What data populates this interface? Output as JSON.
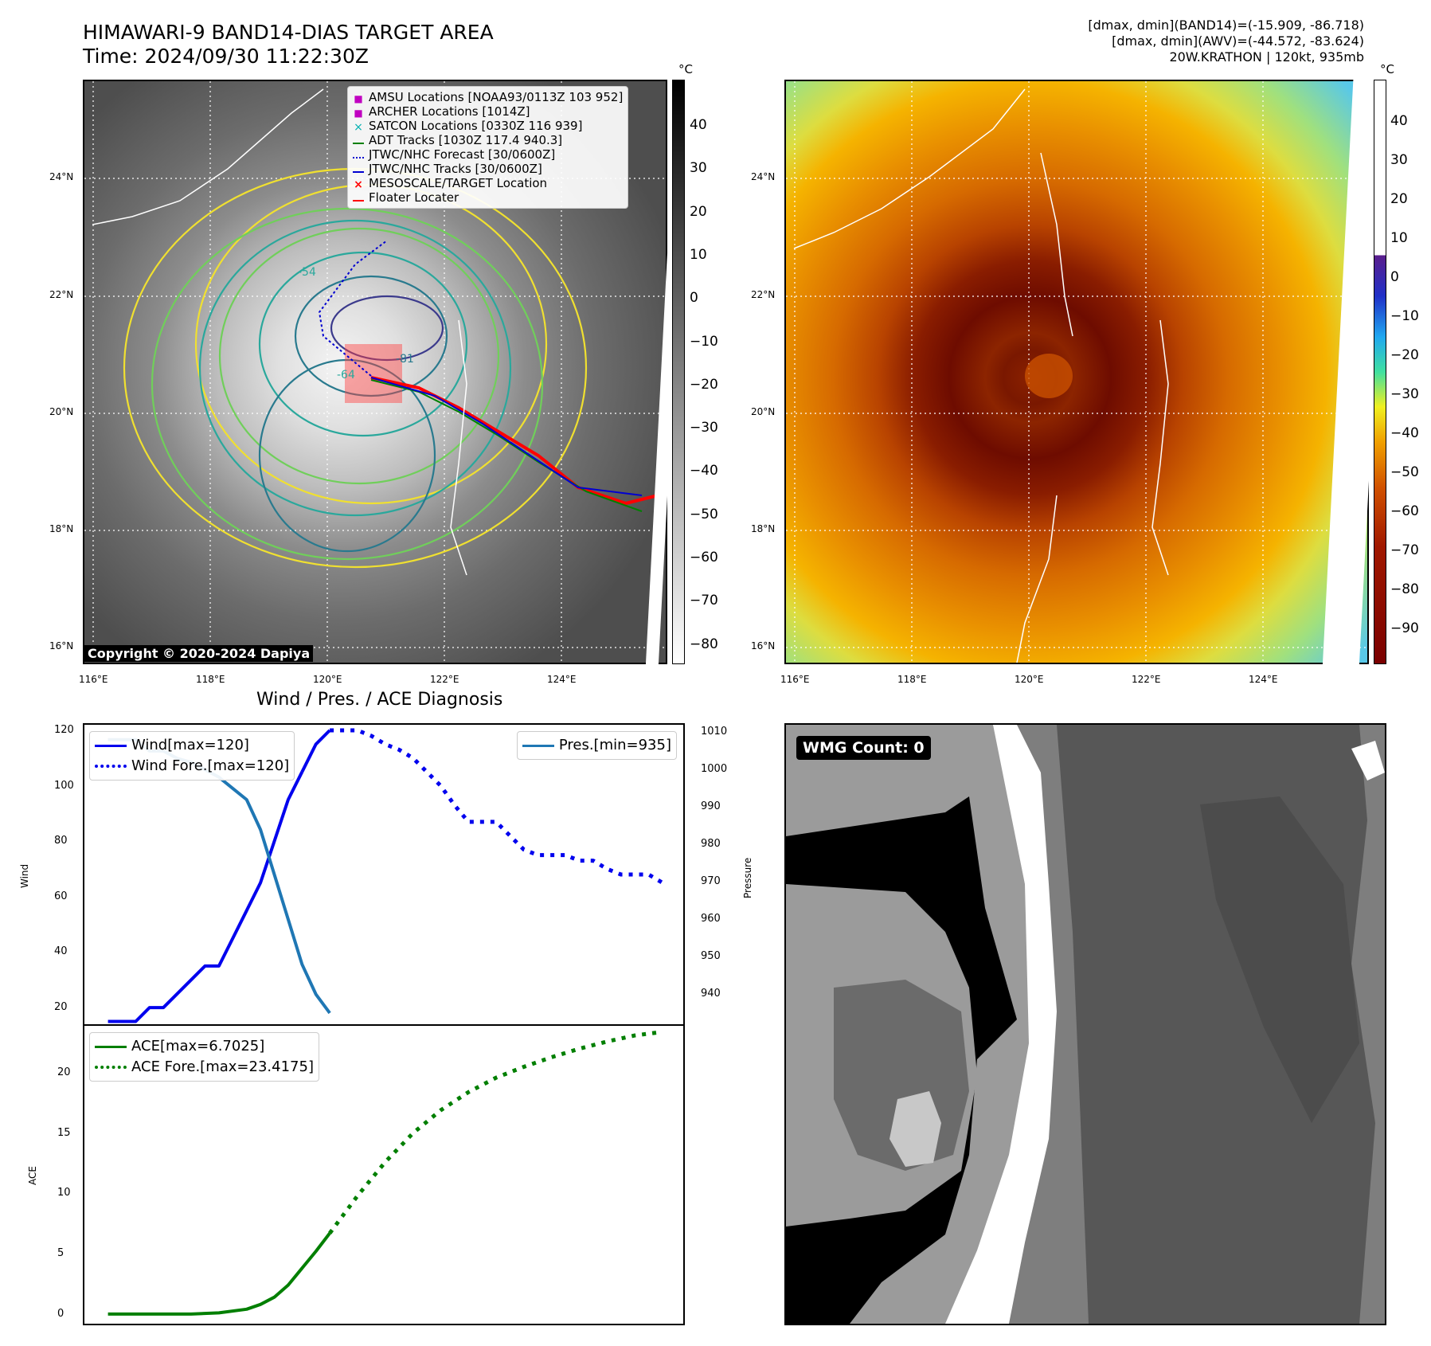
{
  "title_line1": "HIMAWARI-9 BAND14-DIAS TARGET AREA",
  "title_line2": "Time: 2024/09/30 11:22:30Z",
  "info_line1": "[dmax, dmin](BAND14)=(-15.909, -86.718)",
  "info_line2": "[dmax, dmin](AWV)=(-44.572, -83.624)",
  "info_line3": "20W.KRATHON | 120kt, 935mb",
  "copyright": "Copyright © 2020-2024 Dapiya",
  "unit_label": "°C",
  "map_lat_ticks": [
    "24°N",
    "22°N",
    "20°N",
    "18°N",
    "16°N"
  ],
  "map_lon_ticks": [
    "116°E",
    "118°E",
    "120°E",
    "122°E",
    "124°E"
  ],
  "cbar_left_ticks": [
    "40",
    "30",
    "20",
    "10",
    "0",
    "−10",
    "−20",
    "−30",
    "−40",
    "−50",
    "−60",
    "−70",
    "−80"
  ],
  "cbar_right_ticks": [
    "40",
    "30",
    "20",
    "10",
    "0",
    "−10",
    "−20",
    "−30",
    "−40",
    "−50",
    "−60",
    "−70",
    "−80",
    "−90"
  ],
  "map_legend": [
    {
      "label": "AMSU Locations [NOAA93/0113Z 103 952]",
      "marker": "square",
      "color": "#c000c0"
    },
    {
      "label": "ARCHER Locations [1014Z]",
      "marker": "square",
      "color": "#c000c0"
    },
    {
      "label": "SATCON Locations [0330Z 116 939]",
      "marker": "x",
      "color": "#00b0b0"
    },
    {
      "label": "ADT Tracks [1030Z 117.4 940.3]",
      "marker": "line",
      "color": "#008000"
    },
    {
      "label": "JTWC/NHC Forecast [30/0600Z]",
      "marker": "dotted",
      "color": "#0000d0"
    },
    {
      "label": "JTWC/NHC Tracks [30/0600Z]",
      "marker": "line-dot",
      "color": "#0000d0"
    },
    {
      "label": "MESOSCALE/TARGET Location",
      "marker": "x",
      "color": "#ff0000"
    },
    {
      "label": "Floater Locater",
      "marker": "line",
      "color": "#ff0000"
    }
  ],
  "chart_title": "Wind / Pres. / ACE Diagnosis",
  "wmg_label": "WMG Count: 0",
  "chart_data": [
    {
      "type": "line",
      "ylabel": "Wind",
      "y2label": "Pressure",
      "ylim": [
        14,
        122
      ],
      "y2lim": [
        932,
        1012
      ],
      "yticks": [
        20,
        40,
        60,
        80,
        100,
        120
      ],
      "y2ticks": [
        940,
        950,
        960,
        970,
        980,
        990,
        1000,
        1010
      ],
      "legend_left": [
        "Wind[max=120]",
        "Wind Fore.[max=120]"
      ],
      "legend_right": [
        "Pres.[min=935]"
      ],
      "series": [
        {
          "name": "Wind[max=120]",
          "axis": "left",
          "color": "#0000ee",
          "style": "solid",
          "x": [
            0,
            1,
            2,
            3,
            4,
            5,
            6,
            7,
            8,
            9,
            10,
            11,
            12,
            13,
            14
          ],
          "values": [
            15,
            15,
            15,
            20,
            20,
            25,
            30,
            35,
            35,
            45,
            55,
            65,
            80,
            95,
            105
          ]
        },
        {
          "name": "Wind[max=120]",
          "axis": "left",
          "color": "#0000ee",
          "style": "solid",
          "x": [
            14,
            15,
            16
          ],
          "values": [
            105,
            115,
            120
          ]
        },
        {
          "name": "Wind Fore.[max=120]",
          "axis": "left",
          "color": "#0000ee",
          "style": "dotted",
          "x": [
            16,
            17,
            18,
            19,
            20,
            21,
            22,
            23,
            24,
            25,
            26,
            27,
            28,
            29,
            30,
            31,
            32,
            33,
            34,
            35,
            36,
            37,
            38,
            39,
            40
          ],
          "values": [
            120,
            120,
            120,
            118,
            115,
            113,
            110,
            105,
            100,
            93,
            87,
            87,
            87,
            82,
            77,
            75,
            75,
            75,
            73,
            73,
            70,
            68,
            68,
            68,
            65
          ]
        },
        {
          "name": "Pres.[min=935]",
          "axis": "right",
          "color": "#1f77b4",
          "style": "solid",
          "x": [
            0,
            1,
            2,
            3,
            4,
            5,
            6,
            7,
            8,
            9,
            10,
            11,
            12,
            13,
            14,
            15,
            16
          ],
          "values": [
            1008,
            1008,
            1008,
            1005,
            1005,
            1003,
            1002,
            1000,
            998,
            995,
            992,
            984,
            972,
            960,
            948,
            940,
            935
          ]
        }
      ]
    },
    {
      "type": "line",
      "ylabel": "ACE",
      "ylim": [
        -0.8,
        23.9
      ],
      "yticks": [
        0,
        5,
        10,
        15,
        20
      ],
      "legend": [
        "ACE[max=6.7025]",
        "ACE Fore.[max=23.4175]"
      ],
      "series": [
        {
          "name": "ACE[max=6.7025]",
          "color": "#007f00",
          "style": "solid",
          "x": [
            0,
            2,
            4,
            6,
            8,
            10,
            11,
            12,
            13,
            14,
            15,
            16
          ],
          "values": [
            0,
            0,
            0,
            0,
            0.1,
            0.4,
            0.8,
            1.4,
            2.4,
            3.8,
            5.2,
            6.7
          ]
        },
        {
          "name": "ACE Fore.[max=23.4175]",
          "color": "#007f00",
          "style": "dotted",
          "x": [
            16,
            18,
            20,
            22,
            24,
            26,
            28,
            30,
            32,
            34,
            36,
            38,
            40
          ],
          "values": [
            6.7,
            9.8,
            12.6,
            15.0,
            16.9,
            18.4,
            19.6,
            20.5,
            21.3,
            22.0,
            22.6,
            23.1,
            23.4
          ]
        }
      ]
    }
  ]
}
